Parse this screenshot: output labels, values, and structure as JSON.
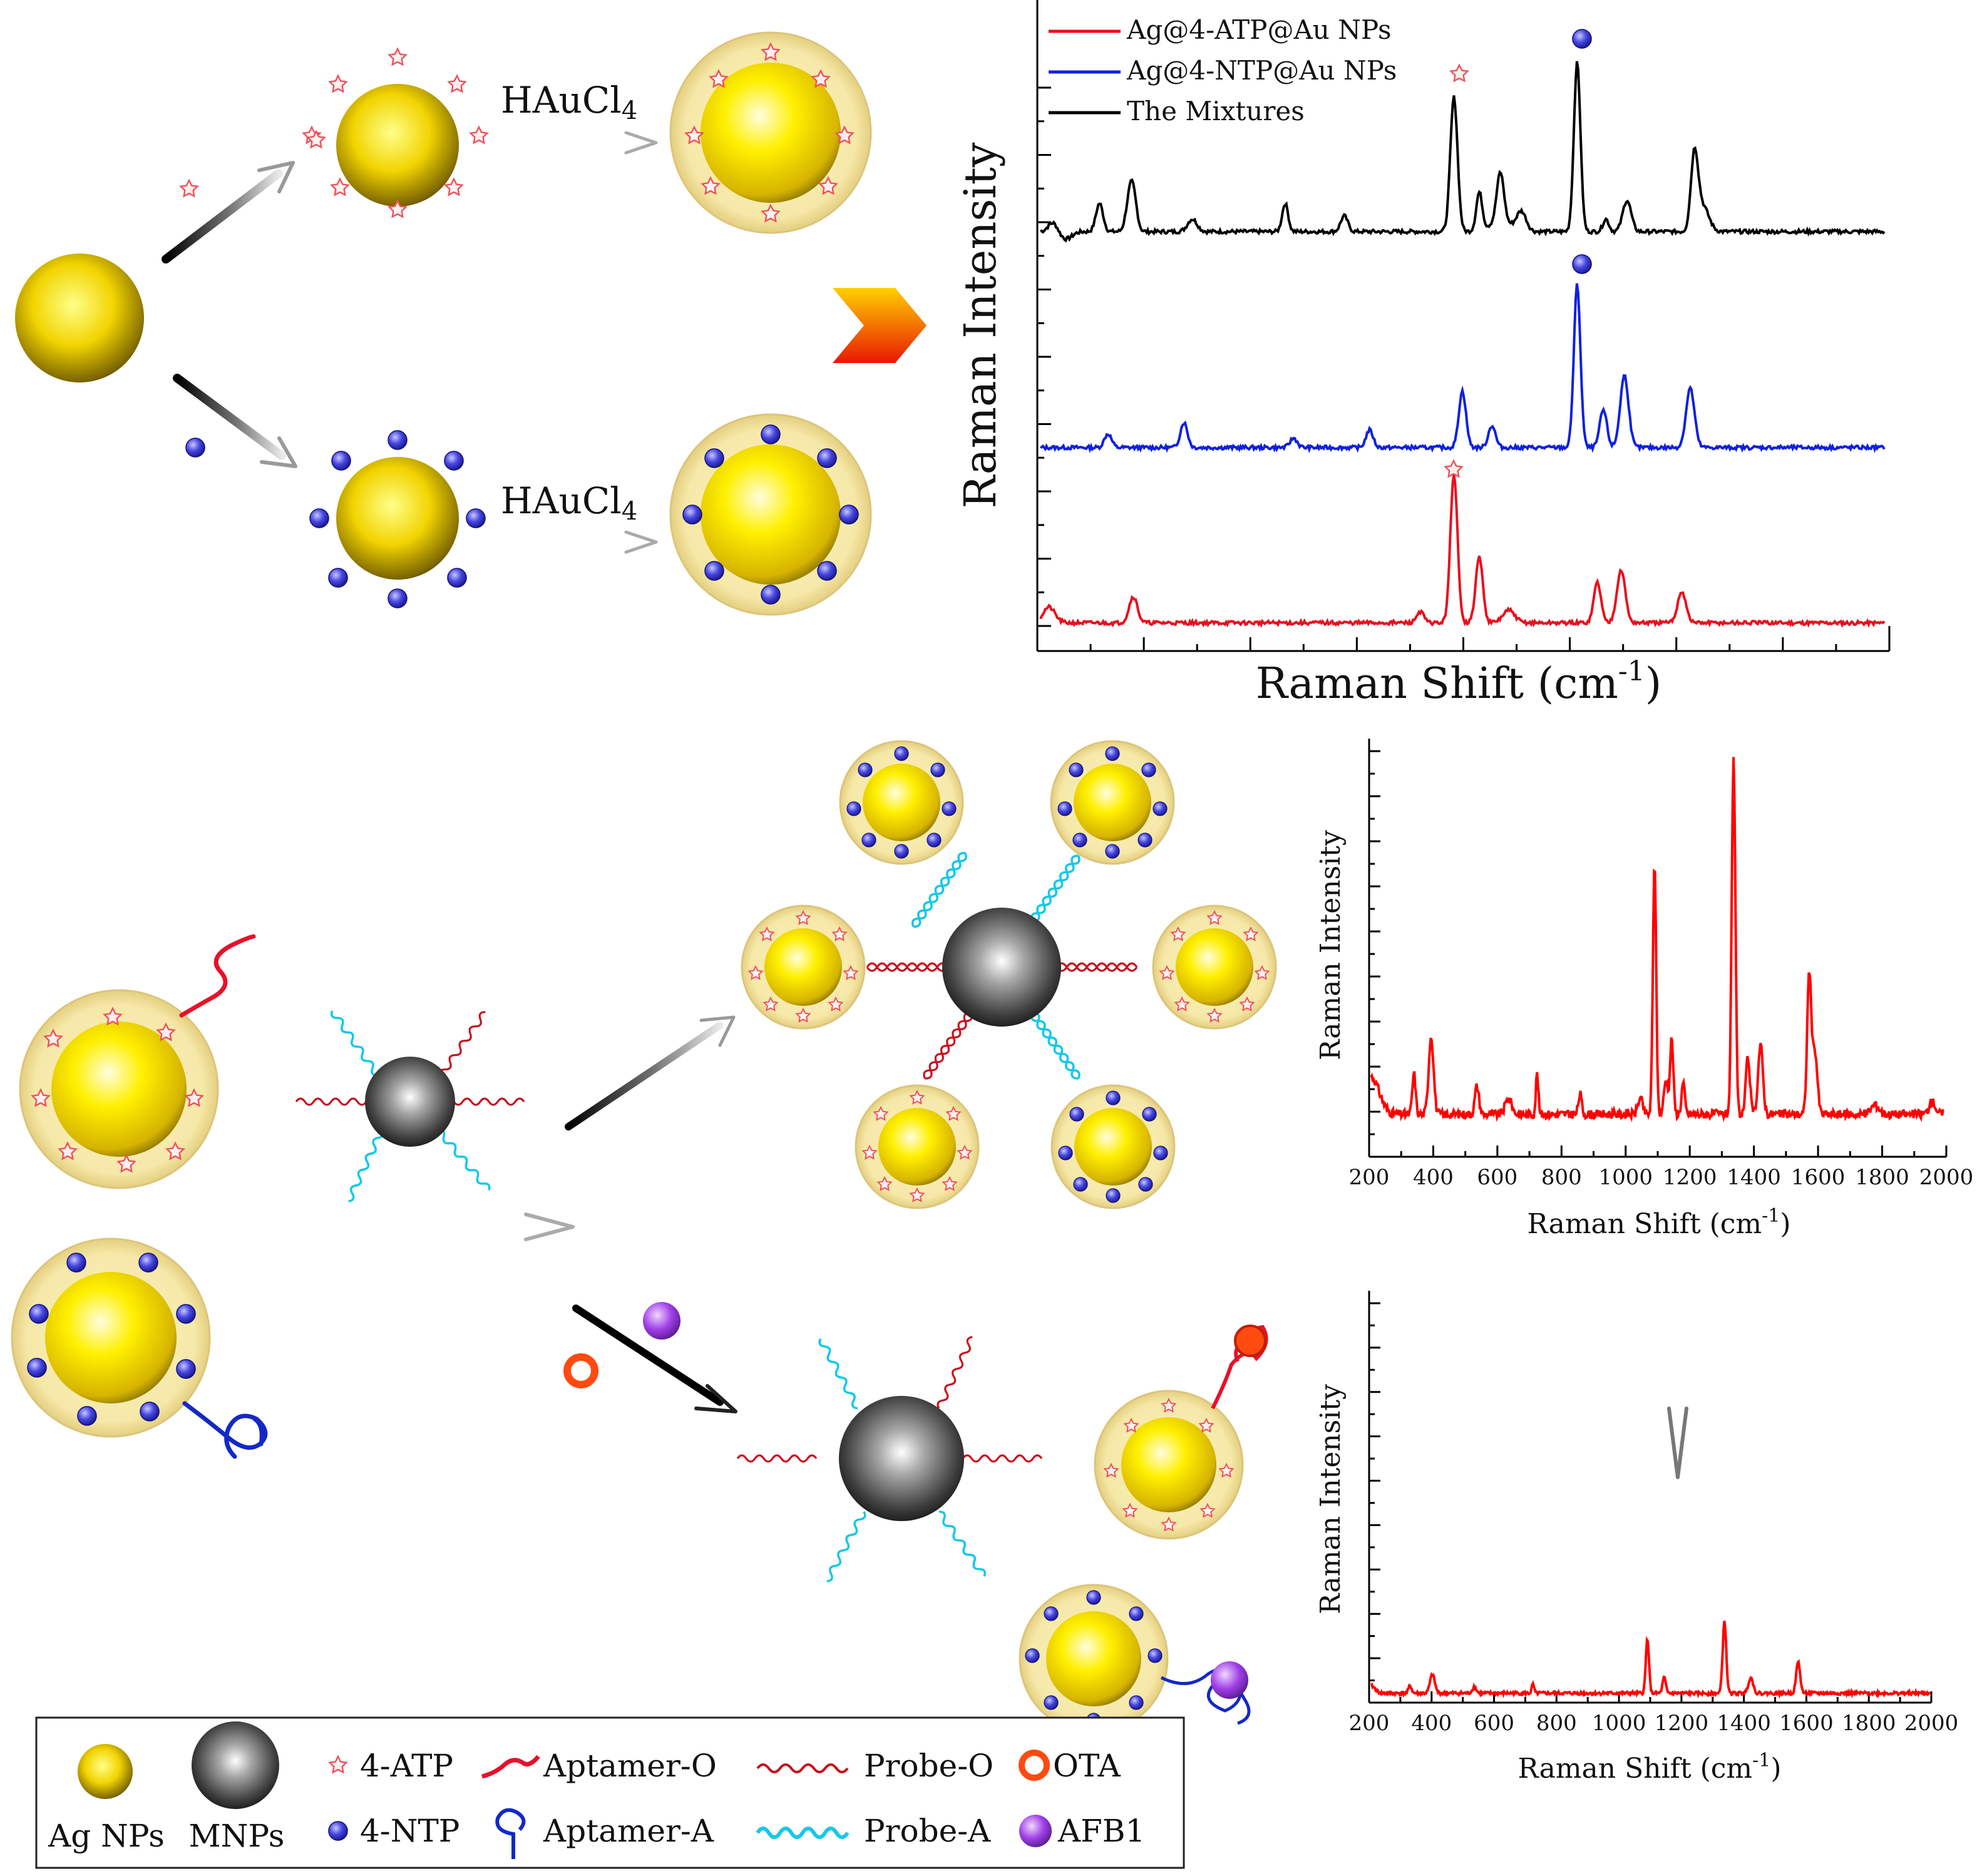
{
  "reagents": {
    "hauc_top": "HAuCl",
    "hauc_bottom": "HAuCl",
    "hauc_sub": "4"
  },
  "colors": {
    "gold": "#f4d60f",
    "shell": "#f6e9a6",
    "ntp": "#3b3bd8",
    "atp": "#f0505a",
    "aptamer_o": "#e8102a",
    "aptamer_a": "#1428c8",
    "probe_o": "#c8101e",
    "probe_a": "#16c8e8",
    "ota": "#ff4a10",
    "afb1": "#a040e8"
  },
  "top_chart": {
    "xlabel": "Raman Shift (cm",
    "xlabel_sup": "-1",
    "xlabel_end": ")",
    "ylabel": "Raman Intensity",
    "legend": [
      {
        "label": "Ag@4-ATP@Au NPs",
        "color": "#e8101e"
      },
      {
        "label": "Ag@4-NTP@Au NPs",
        "color": "#1020e0"
      },
      {
        "label": "The Mixtures",
        "color": "#000000"
      }
    ]
  },
  "mid_chart": {
    "ylabel": "Raman Intensity",
    "xlabel": "Raman Shift (cm",
    "xlabel_sup": "-1",
    "xlabel_end": ")",
    "ticks": [
      "200",
      "400",
      "600",
      "800",
      "1000",
      "1200",
      "1400",
      "1600",
      "1800",
      "2000"
    ]
  },
  "bot_chart": {
    "ylabel": "Raman Intensity",
    "xlabel": "Raman Shift (cm",
    "xlabel_sup": "-1",
    "xlabel_end": ")",
    "ticks": [
      "200",
      "400",
      "600",
      "800",
      "1000",
      "1200",
      "1400",
      "1600",
      "1800",
      "2000"
    ]
  },
  "legend_box": {
    "ag": "Ag NPs",
    "mnp": "MNPs",
    "atp": "4-ATP",
    "ntp": "4-NTP",
    "apt_o": "Aptamer-O",
    "apt_a": "Aptamer-A",
    "probe_o": "Probe-O",
    "probe_a": "Probe-A",
    "ota": "OTA",
    "afb1": "AFB1"
  }
}
